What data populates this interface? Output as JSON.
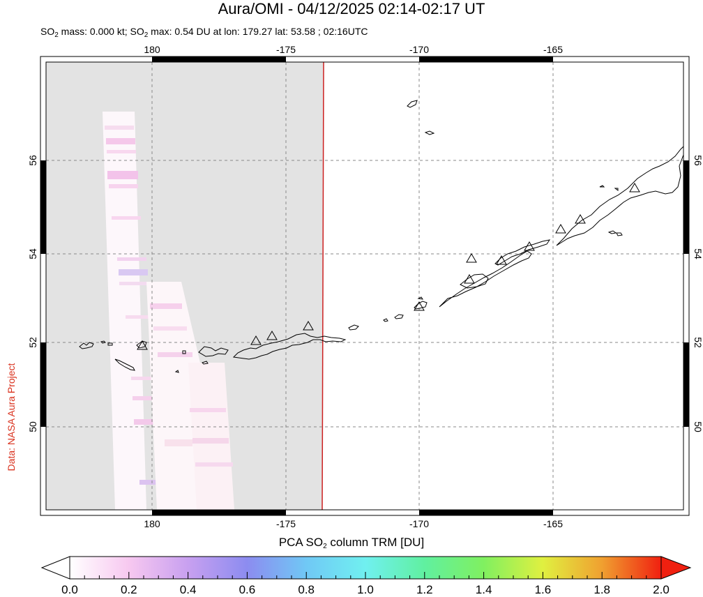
{
  "title": "Aura/OMI - 04/12/2025 02:14-02:17 UT",
  "subtitle": {
    "mass_prefix": "SO",
    "mass_sub": "2",
    "mass_text": " mass: 0.000 kt; SO",
    "max_sub": "2",
    "max_text": " max: 0.54 DU at lon: 179.27 lat: 53.58 ; 02:16UTC"
  },
  "credit": "Data: NASA Aura Project",
  "map": {
    "lon_ticks_top": [
      "180",
      "-175",
      "-170",
      "-165"
    ],
    "lon_ticks_bottom": [
      "180",
      "-175",
      "-170",
      "-165"
    ],
    "lat_ticks_left": [
      "56",
      "54",
      "52",
      "50"
    ],
    "lat_ticks_right": [
      "56",
      "54",
      "52",
      "50"
    ],
    "colors": {
      "no_data": "#e3e3e3",
      "swath_edge": "#cc2020",
      "coast": "#000000",
      "grid": "#888888"
    },
    "volcano_marker": "triangle"
  },
  "colorbar": {
    "title_prefix": "PCA SO",
    "title_sub": "2",
    "title_suffix": " column TRM [DU]",
    "labels": [
      "0.0",
      "0.2",
      "0.4",
      "0.6",
      "0.8",
      "1.0",
      "1.2",
      "1.4",
      "1.6",
      "1.8",
      "2.0"
    ],
    "range": [
      0.0,
      2.0
    ],
    "colors": [
      "#ffffff",
      "#f7c8f0",
      "#c8a0f0",
      "#8c8cf0",
      "#70c8f5",
      "#70f0f0",
      "#60f0a0",
      "#80f060",
      "#e0f040",
      "#f0a030",
      "#f02010"
    ]
  }
}
